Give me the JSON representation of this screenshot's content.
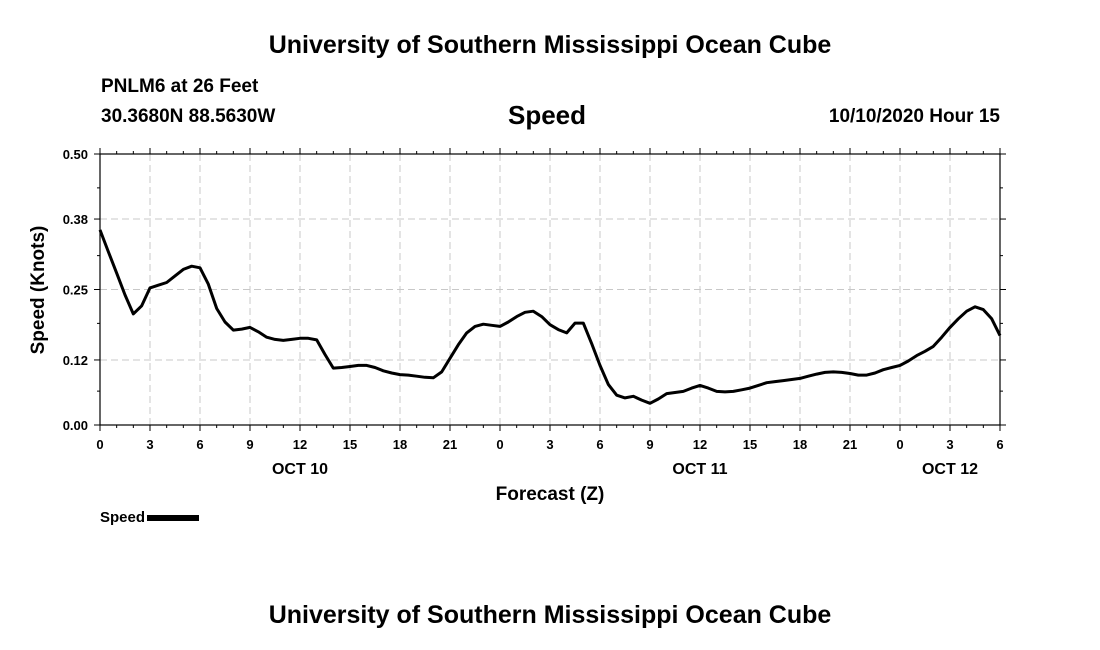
{
  "page": {
    "title_top": "University of Southern Mississippi Ocean Cube",
    "title_bottom": "University of Southern Mississippi Ocean Cube",
    "station": "PNLM6 at 26 Feet",
    "coords": "30.3680N 88.5630W",
    "chart_title": "Speed",
    "datetime": "10/10/2020 Hour 15"
  },
  "chart_data": {
    "type": "line",
    "title": "Speed",
    "xlabel": "Forecast (Z)",
    "ylabel": "Speed (Knots)",
    "xlim": [
      0,
      54
    ],
    "ylim": [
      0,
      0.5
    ],
    "yticks": [
      "0.00",
      "0.12",
      "0.25",
      "0.38",
      "0.50"
    ],
    "xtick_labels": [
      "0",
      "3",
      "6",
      "9",
      "12",
      "15",
      "18",
      "21",
      "0",
      "3",
      "6",
      "9",
      "12",
      "15",
      "18",
      "21",
      "0",
      "3",
      "6"
    ],
    "day_labels": [
      {
        "label": "OCT 10",
        "at": 12
      },
      {
        "label": "OCT 11",
        "at": 36
      },
      {
        "label": "OCT 12",
        "at": 51
      }
    ],
    "grid": true,
    "legend": [
      {
        "name": "Speed",
        "placement": "bottom-left"
      }
    ],
    "series": [
      {
        "name": "Speed",
        "x": [
          0,
          0.5,
          1,
          1.5,
          2,
          2.5,
          3,
          3.5,
          4,
          4.5,
          5,
          5.5,
          6,
          6.5,
          7,
          7.5,
          8,
          8.5,
          9,
          9.5,
          10,
          10.5,
          11,
          11.5,
          12,
          12.5,
          13,
          13.5,
          14,
          14.5,
          15,
          15.5,
          16,
          16.5,
          17,
          17.5,
          18,
          18.5,
          19,
          19.5,
          20,
          20.5,
          21,
          21.5,
          22,
          22.5,
          23,
          23.5,
          24,
          24.5,
          25,
          25.5,
          26,
          26.5,
          27,
          27.5,
          28,
          28.5,
          29,
          29.5,
          30,
          30.5,
          31,
          31.5,
          32,
          32.5,
          33,
          33.5,
          34,
          34.5,
          35,
          35.5,
          36,
          36.5,
          37,
          37.5,
          38,
          38.5,
          39,
          39.5,
          40,
          40.5,
          41,
          41.5,
          42,
          42.5,
          43,
          43.5,
          44,
          44.5,
          45,
          45.5,
          46,
          46.5,
          47,
          47.5,
          48,
          48.5,
          49,
          49.5,
          50,
          50.5,
          51,
          51.5,
          52,
          52.5,
          53,
          53.5,
          54
        ],
        "values": [
          0.36,
          0.32,
          0.28,
          0.24,
          0.205,
          0.22,
          0.253,
          0.258,
          0.263,
          0.275,
          0.287,
          0.293,
          0.29,
          0.26,
          0.215,
          0.19,
          0.175,
          0.177,
          0.18,
          0.172,
          0.162,
          0.158,
          0.156,
          0.158,
          0.16,
          0.16,
          0.157,
          0.13,
          0.105,
          0.106,
          0.108,
          0.11,
          0.11,
          0.106,
          0.1,
          0.096,
          0.093,
          0.092,
          0.09,
          0.088,
          0.087,
          0.098,
          0.123,
          0.148,
          0.17,
          0.182,
          0.186,
          0.184,
          0.182,
          0.19,
          0.2,
          0.208,
          0.21,
          0.2,
          0.185,
          0.176,
          0.17,
          0.188,
          0.188,
          0.15,
          0.11,
          0.075,
          0.055,
          0.05,
          0.053,
          0.046,
          0.04,
          0.048,
          0.058,
          0.06,
          0.062,
          0.068,
          0.073,
          0.068,
          0.062,
          0.061,
          0.062,
          0.065,
          0.068,
          0.073,
          0.078,
          0.08,
          0.082,
          0.084,
          0.086,
          0.09,
          0.094,
          0.097,
          0.098,
          0.097,
          0.095,
          0.092,
          0.092,
          0.096,
          0.102,
          0.106,
          0.11,
          0.118,
          0.128,
          0.136,
          0.145,
          0.162,
          0.18,
          0.196,
          0.21,
          0.218,
          0.213,
          0.196,
          0.165
        ]
      }
    ]
  }
}
